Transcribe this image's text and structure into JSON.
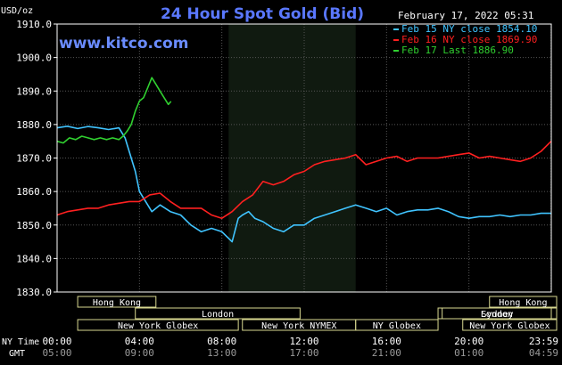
{
  "chart_data": {
    "type": "line",
    "title": "24 Hour Spot Gold (Bid)",
    "ylabel": "USD/oz",
    "site": "www.kitco.com",
    "date_label": "February 17, 2022 05:31",
    "ylim": [
      1830,
      1910
    ],
    "xlim": [
      0,
      24
    ],
    "y_ticks": [
      "1910.0",
      "1900.0",
      "1890.0",
      "1880.0",
      "1870.0",
      "1860.0",
      "1850.0",
      "1840.0",
      "1830.0"
    ],
    "x_ticks_ny": [
      "00:00",
      "04:00",
      "08:00",
      "12:00",
      "16:00",
      "20:00",
      "23:59"
    ],
    "x_ticks_gmt": [
      "05:00",
      "09:00",
      "13:00",
      "17:00",
      "21:00",
      "01:00",
      "04:59"
    ],
    "x_row_labels": {
      "ny": "NY Time",
      "gmt": "GMT"
    },
    "legend_placement": "top-right",
    "legend": [
      {
        "text": "Feb 15 NY close 1854.10",
        "color": "#40c4ff"
      },
      {
        "text": "Feb 16 NY close 1869.90",
        "color": "#ff2020"
      },
      {
        "text": "Feb 17 Last 1886.90",
        "color": "#30d030"
      }
    ],
    "sessions": [
      {
        "name": "Hong Kong",
        "rows": [
          [
            1,
            4.8
          ],
          [
            21,
            25
          ]
        ],
        "row": 0
      },
      {
        "name": "London",
        "rows": [
          [
            3.8,
            11.8
          ],
          [
            18.7,
            24
          ]
        ],
        "row": 1
      },
      {
        "name": "New York Globex",
        "rows": [
          [
            1,
            8.8
          ],
          [
            19.7,
            25
          ]
        ],
        "row": 2
      }
    ],
    "markets": [
      {
        "name": "New York NYMEX",
        "from": 9,
        "to": 14.5,
        "row": 2
      },
      {
        "name": "NY Globex",
        "from": 14.5,
        "to": 18.5,
        "row": 2
      },
      {
        "name": "Sydney",
        "from": 18.5,
        "to": 25,
        "row": 1
      }
    ],
    "nymex_shade": [
      8.33,
      14.5
    ],
    "series": [
      {
        "name": "Feb 15 NY close 1854.10",
        "color": "#40c4ff",
        "x": [
          0,
          0.5,
          1,
          1.5,
          2,
          2.5,
          3,
          3.3,
          3.6,
          3.8,
          4,
          4.3,
          4.6,
          5,
          5.5,
          6,
          6.5,
          7,
          7.5,
          8,
          8.5,
          8.8,
          9,
          9.3,
          9.6,
          10,
          10.5,
          11,
          11.5,
          12,
          12.5,
          13,
          13.5,
          14,
          14.5,
          15,
          15.5,
          16,
          16.5,
          17,
          17.5,
          18,
          18.5,
          19,
          19.5,
          20,
          20.5,
          21,
          21.5,
          22,
          22.5,
          23,
          23.5,
          23.99
        ],
        "y": [
          1879,
          1879.5,
          1878.8,
          1879.4,
          1879,
          1878.5,
          1879,
          1876,
          1870,
          1866,
          1860,
          1857,
          1854,
          1856,
          1854,
          1853,
          1850,
          1848,
          1849,
          1848,
          1845,
          1852,
          1853,
          1854,
          1852,
          1851,
          1849,
          1848,
          1850,
          1850,
          1852,
          1853,
          1854,
          1855,
          1856,
          1855,
          1854,
          1855,
          1853,
          1854,
          1854.5,
          1854.5,
          1855,
          1854,
          1852.5,
          1852,
          1852.5,
          1852.5,
          1853,
          1852.5,
          1853,
          1853,
          1853.5,
          1853.5
        ]
      },
      {
        "name": "Feb 16 NY close 1869.90",
        "color": "#ff2020",
        "x": [
          0,
          0.5,
          1,
          1.5,
          2,
          2.5,
          3,
          3.5,
          4,
          4.5,
          5,
          5.5,
          6,
          6.5,
          7,
          7.5,
          8,
          8.5,
          9,
          9.5,
          10,
          10.5,
          11,
          11.5,
          12,
          12.5,
          13,
          13.5,
          14,
          14.5,
          15,
          15.5,
          16,
          16.5,
          17,
          17.5,
          18,
          18.5,
          19,
          19.5,
          20,
          20.5,
          21,
          21.5,
          22,
          22.5,
          23,
          23.5,
          23.99
        ],
        "y": [
          1853,
          1854,
          1854.5,
          1855,
          1855,
          1856,
          1856.5,
          1857,
          1857,
          1859,
          1859.5,
          1857,
          1855,
          1855,
          1855,
          1853,
          1852,
          1854,
          1857,
          1859,
          1863,
          1862,
          1863,
          1865,
          1866,
          1868,
          1869,
          1869.5,
          1870,
          1871,
          1868,
          1869,
          1870,
          1870.5,
          1869,
          1870,
          1870,
          1870,
          1870.5,
          1871,
          1871.5,
          1870,
          1870.5,
          1870,
          1869.5,
          1869,
          1870,
          1872,
          1875
        ]
      },
      {
        "name": "Feb 17 Last 1886.90",
        "color": "#30d030",
        "x": [
          0,
          0.3,
          0.6,
          0.9,
          1.2,
          1.5,
          1.8,
          2.1,
          2.4,
          2.7,
          3,
          3.2,
          3.4,
          3.6,
          3.8,
          4,
          4.2,
          4.4,
          4.6,
          4.8,
          5,
          5.2,
          5.4,
          5.53
        ],
        "y": [
          1875,
          1874.5,
          1876,
          1875.5,
          1876.5,
          1876,
          1875.5,
          1876,
          1875.5,
          1876,
          1875.5,
          1876.5,
          1878,
          1880,
          1884,
          1887,
          1888,
          1891,
          1894,
          1892,
          1890,
          1888,
          1886,
          1886.9
        ]
      }
    ]
  }
}
